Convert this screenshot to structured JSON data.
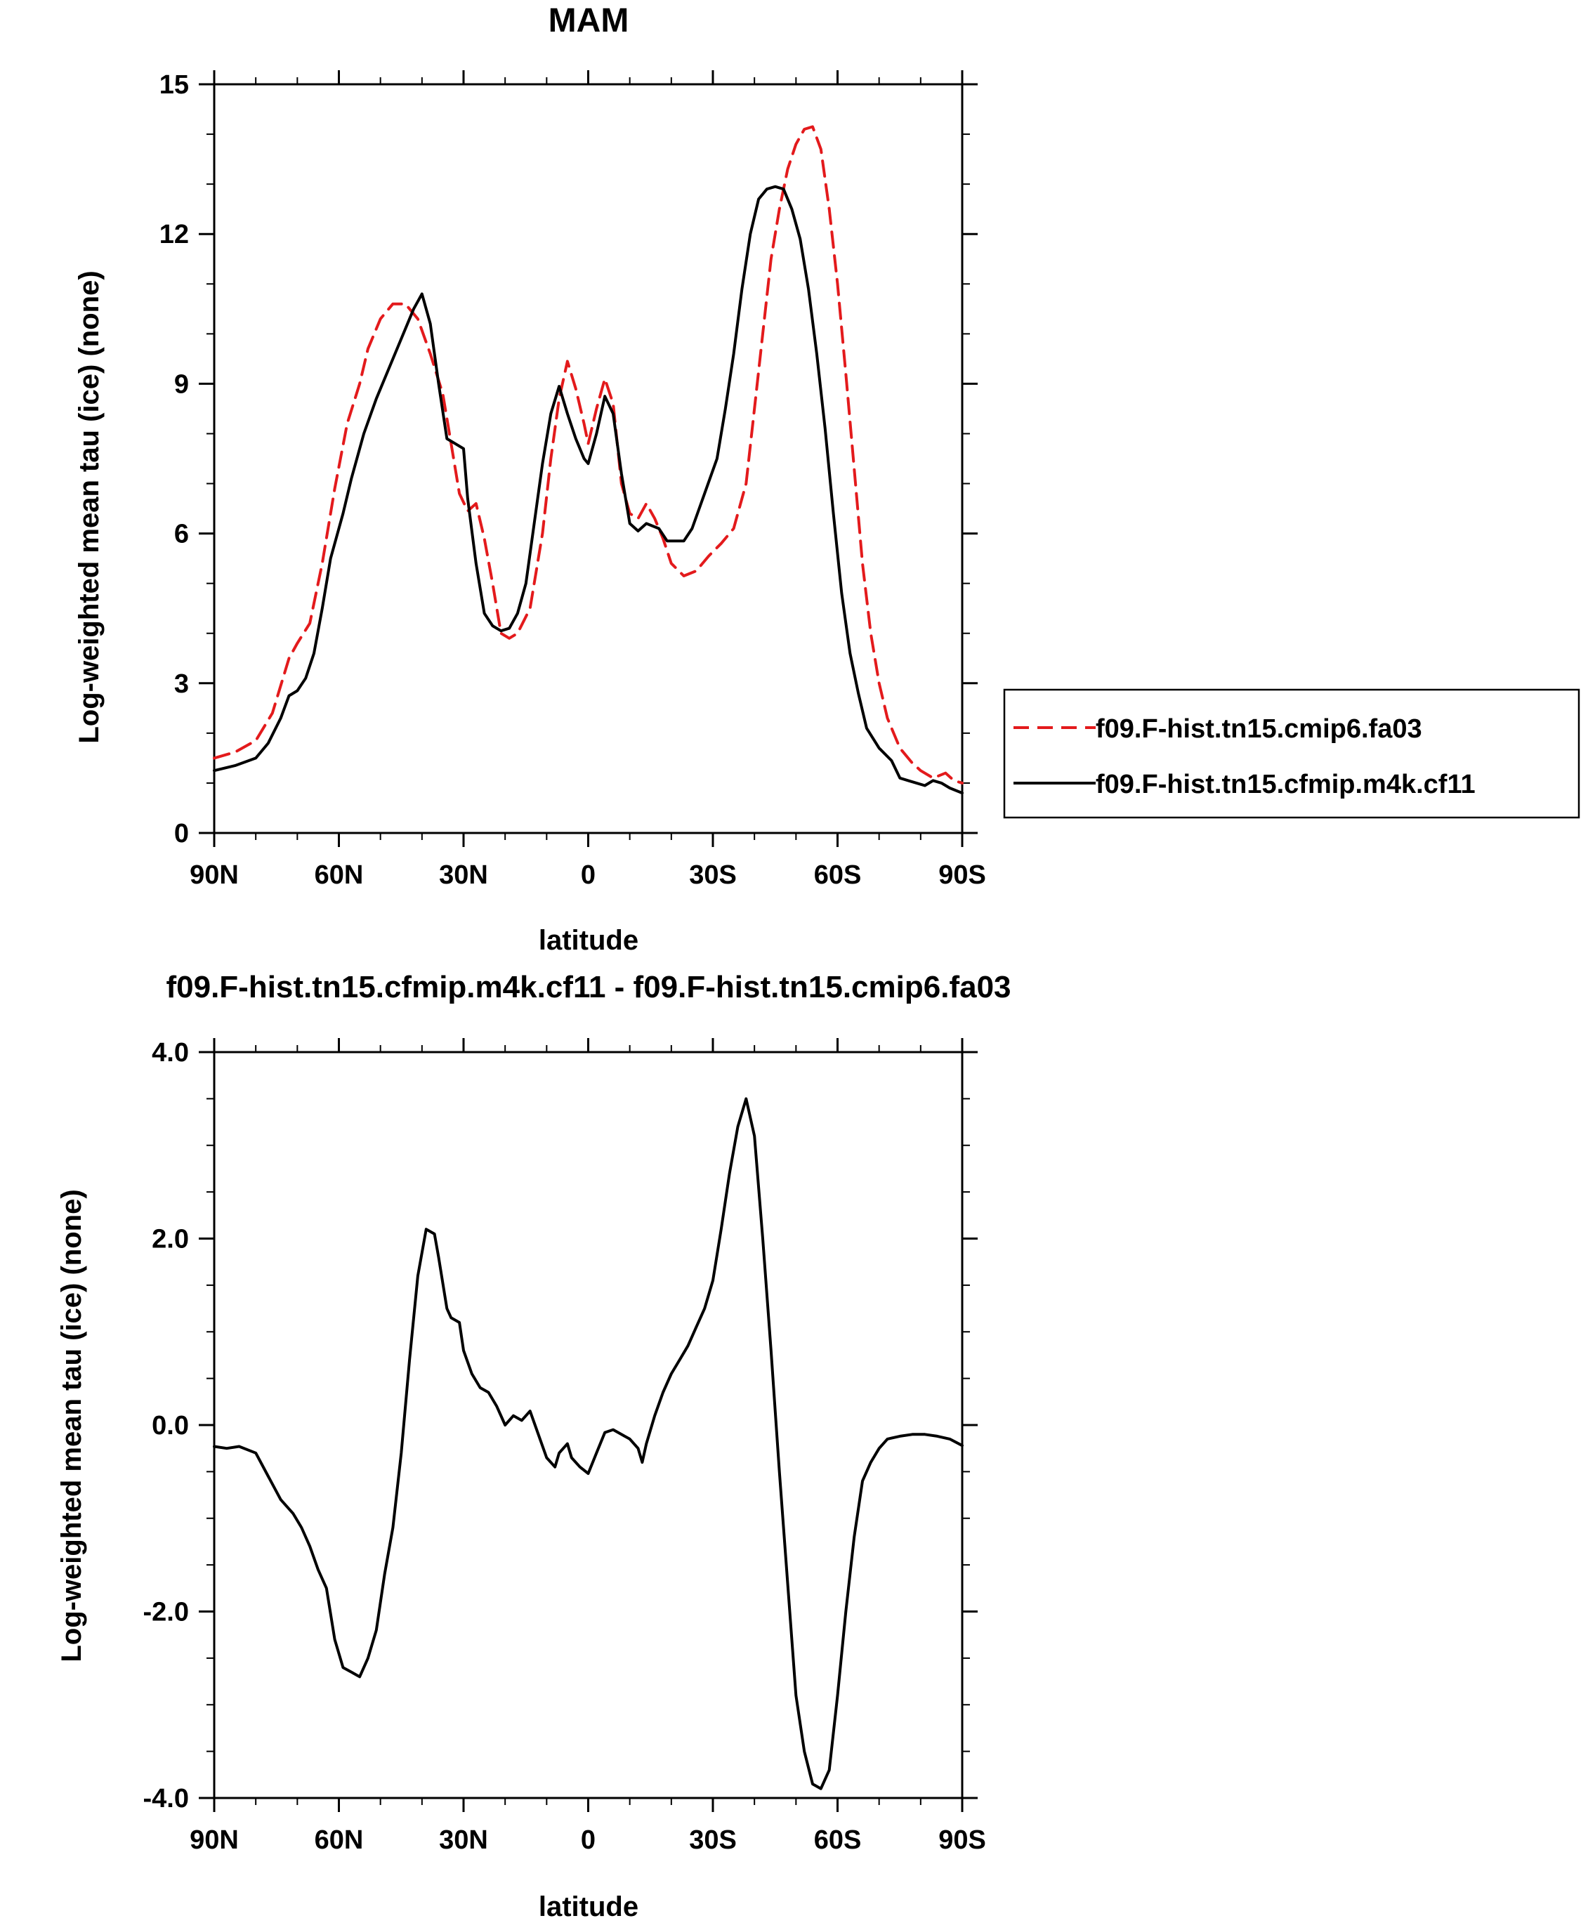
{
  "chart_data": [
    {
      "type": "line",
      "title": "MAM",
      "xlabel": "latitude",
      "ylabel": "Log-weighted mean tau (ice) (none)",
      "xlim": [
        90,
        -90
      ],
      "ylim": [
        0,
        15
      ],
      "xticks": [
        90,
        60,
        30,
        0,
        -30,
        -60,
        -90
      ],
      "xticklabels": [
        "90N",
        "60N",
        "30N",
        "0",
        "30S",
        "60S",
        "90S"
      ],
      "yticks": [
        0,
        3,
        6,
        9,
        12,
        15
      ],
      "yticklabels": [
        "0",
        "3",
        "6",
        "9",
        "12",
        "15"
      ],
      "legend_position": "right",
      "series": [
        {
          "name": "f09.F-hist.tn15.cmip6.fa03",
          "color": "#e31a1c",
          "dashed": true,
          "points": [
            [
              90,
              1.5
            ],
            [
              85,
              1.62
            ],
            [
              80,
              1.85
            ],
            [
              76,
              2.4
            ],
            [
              72,
              3.5
            ],
            [
              70,
              3.8
            ],
            [
              67,
              4.2
            ],
            [
              64,
              5.4
            ],
            [
              61,
              6.9
            ],
            [
              58,
              8.2
            ],
            [
              55,
              9.0
            ],
            [
              53,
              9.7
            ],
            [
              50,
              10.3
            ],
            [
              47,
              10.6
            ],
            [
              44,
              10.6
            ],
            [
              41,
              10.3
            ],
            [
              38,
              9.6
            ],
            [
              35,
              8.8
            ],
            [
              33,
              7.8
            ],
            [
              31,
              6.8
            ],
            [
              29,
              6.45
            ],
            [
              27,
              6.6
            ],
            [
              25,
              5.9
            ],
            [
              23,
              5.0
            ],
            [
              21,
              4.0
            ],
            [
              19,
              3.9
            ],
            [
              17,
              4.0
            ],
            [
              14,
              4.5
            ],
            [
              11,
              6.0
            ],
            [
              9,
              7.5
            ],
            [
              7,
              8.7
            ],
            [
              5,
              9.45
            ],
            [
              3,
              8.9
            ],
            [
              1,
              8.2
            ],
            [
              0,
              7.8
            ],
            [
              -2,
              8.5
            ],
            [
              -4,
              9.1
            ],
            [
              -6,
              8.6
            ],
            [
              -8,
              7.0
            ],
            [
              -10,
              6.4
            ],
            [
              -12,
              6.3
            ],
            [
              -14,
              6.6
            ],
            [
              -16,
              6.3
            ],
            [
              -18,
              5.9
            ],
            [
              -20,
              5.4
            ],
            [
              -23,
              5.15
            ],
            [
              -26,
              5.25
            ],
            [
              -29,
              5.55
            ],
            [
              -32,
              5.8
            ],
            [
              -35,
              6.1
            ],
            [
              -38,
              7.0
            ],
            [
              -40,
              8.5
            ],
            [
              -42,
              10.0
            ],
            [
              -44,
              11.5
            ],
            [
              -46,
              12.5
            ],
            [
              -48,
              13.3
            ],
            [
              -50,
              13.8
            ],
            [
              -52,
              14.1
            ],
            [
              -54,
              14.15
            ],
            [
              -56,
              13.7
            ],
            [
              -58,
              12.5
            ],
            [
              -60,
              11.0
            ],
            [
              -62,
              9.2
            ],
            [
              -64,
              7.3
            ],
            [
              -66,
              5.4
            ],
            [
              -68,
              4.0
            ],
            [
              -70,
              3.0
            ],
            [
              -72,
              2.3
            ],
            [
              -75,
              1.7
            ],
            [
              -78,
              1.4
            ],
            [
              -80,
              1.25
            ],
            [
              -83,
              1.1
            ],
            [
              -86,
              1.2
            ],
            [
              -88,
              1.05
            ],
            [
              -90,
              1.0
            ]
          ]
        },
        {
          "name": "f09.F-hist.tn15.cfmip.m4k.cf11",
          "color": "#000000",
          "dashed": false,
          "points": [
            [
              90,
              1.25
            ],
            [
              85,
              1.35
            ],
            [
              80,
              1.5
            ],
            [
              77,
              1.8
            ],
            [
              74,
              2.3
            ],
            [
              72,
              2.75
            ],
            [
              70,
              2.85
            ],
            [
              68,
              3.1
            ],
            [
              66,
              3.6
            ],
            [
              64,
              4.5
            ],
            [
              62,
              5.5
            ],
            [
              59,
              6.4
            ],
            [
              57,
              7.1
            ],
            [
              54,
              8.0
            ],
            [
              51,
              8.7
            ],
            [
              48,
              9.3
            ],
            [
              45,
              9.9
            ],
            [
              42,
              10.5
            ],
            [
              40,
              10.8
            ],
            [
              38,
              10.2
            ],
            [
              36,
              9.0
            ],
            [
              34,
              7.9
            ],
            [
              32,
              7.8
            ],
            [
              30,
              7.7
            ],
            [
              29,
              6.7
            ],
            [
              27,
              5.4
            ],
            [
              25,
              4.4
            ],
            [
              23,
              4.15
            ],
            [
              21,
              4.05
            ],
            [
              19,
              4.1
            ],
            [
              17,
              4.4
            ],
            [
              15,
              5.0
            ],
            [
              13,
              6.2
            ],
            [
              11,
              7.4
            ],
            [
              9,
              8.4
            ],
            [
              7,
              8.95
            ],
            [
              5,
              8.4
            ],
            [
              3,
              7.9
            ],
            [
              1,
              7.5
            ],
            [
              0,
              7.4
            ],
            [
              -2,
              8.0
            ],
            [
              -4,
              8.75
            ],
            [
              -6,
              8.4
            ],
            [
              -8,
              7.2
            ],
            [
              -10,
              6.2
            ],
            [
              -12,
              6.05
            ],
            [
              -14,
              6.2
            ],
            [
              -17,
              6.1
            ],
            [
              -19,
              5.85
            ],
            [
              -21,
              5.85
            ],
            [
              -23,
              5.85
            ],
            [
              -25,
              6.1
            ],
            [
              -28,
              6.8
            ],
            [
              -31,
              7.5
            ],
            [
              -33,
              8.5
            ],
            [
              -35,
              9.6
            ],
            [
              -37,
              10.9
            ],
            [
              -39,
              12.0
            ],
            [
              -41,
              12.7
            ],
            [
              -43,
              12.9
            ],
            [
              -45,
              12.95
            ],
            [
              -47,
              12.9
            ],
            [
              -49,
              12.5
            ],
            [
              -51,
              11.9
            ],
            [
              -53,
              10.9
            ],
            [
              -55,
              9.6
            ],
            [
              -57,
              8.1
            ],
            [
              -59,
              6.4
            ],
            [
              -61,
              4.8
            ],
            [
              -63,
              3.6
            ],
            [
              -65,
              2.8
            ],
            [
              -67,
              2.1
            ],
            [
              -70,
              1.7
            ],
            [
              -73,
              1.45
            ],
            [
              -75,
              1.1
            ],
            [
              -77,
              1.05
            ],
            [
              -79,
              1.0
            ],
            [
              -81,
              0.95
            ],
            [
              -83,
              1.05
            ],
            [
              -85,
              1.0
            ],
            [
              -87,
              0.9
            ],
            [
              -90,
              0.8
            ]
          ]
        }
      ]
    },
    {
      "type": "line",
      "title": "f09.F-hist.tn15.cfmip.m4k.cf11 - f09.F-hist.tn15.cmip6.fa03",
      "xlabel": "latitude",
      "ylabel": "Log-weighted mean tau (ice) (none)",
      "xlim": [
        90,
        -90
      ],
      "ylim": [
        -4,
        4
      ],
      "xticks": [
        90,
        60,
        30,
        0,
        -30,
        -60,
        -90
      ],
      "xticklabels": [
        "90N",
        "60N",
        "30N",
        "0",
        "30S",
        "60S",
        "90S"
      ],
      "yticks": [
        -4,
        -2,
        0,
        2,
        4
      ],
      "yticklabels": [
        "-4.0",
        "-2.0",
        "0.0",
        "2.0",
        "4.0"
      ],
      "series": [
        {
          "color": "#000000",
          "dashed": false,
          "points": [
            [
              90,
              -0.23
            ],
            [
              87,
              -0.25
            ],
            [
              84,
              -0.23
            ],
            [
              80,
              -0.3
            ],
            [
              77,
              -0.55
            ],
            [
              74,
              -0.8
            ],
            [
              71,
              -0.95
            ],
            [
              69,
              -1.1
            ],
            [
              67,
              -1.3
            ],
            [
              65,
              -1.55
            ],
            [
              63,
              -1.75
            ],
            [
              61,
              -2.3
            ],
            [
              59,
              -2.6
            ],
            [
              57,
              -2.65
            ],
            [
              55,
              -2.7
            ],
            [
              53,
              -2.5
            ],
            [
              51,
              -2.2
            ],
            [
              49,
              -1.6
            ],
            [
              47,
              -1.1
            ],
            [
              45,
              -0.3
            ],
            [
              43,
              0.7
            ],
            [
              41,
              1.6
            ],
            [
              39,
              2.1
            ],
            [
              37,
              2.05
            ],
            [
              36,
              1.8
            ],
            [
              34,
              1.25
            ],
            [
              33,
              1.15
            ],
            [
              31,
              1.1
            ],
            [
              30,
              0.8
            ],
            [
              28,
              0.55
            ],
            [
              26,
              0.4
            ],
            [
              24,
              0.35
            ],
            [
              22,
              0.2
            ],
            [
              20,
              0.0
            ],
            [
              18,
              0.1
            ],
            [
              16,
              0.05
            ],
            [
              14,
              0.15
            ],
            [
              12,
              -0.1
            ],
            [
              10,
              -0.35
            ],
            [
              8,
              -0.45
            ],
            [
              7,
              -0.3
            ],
            [
              5,
              -0.2
            ],
            [
              4,
              -0.35
            ],
            [
              2,
              -0.45
            ],
            [
              0,
              -0.52
            ],
            [
              -2,
              -0.3
            ],
            [
              -4,
              -0.08
            ],
            [
              -6,
              -0.05
            ],
            [
              -8,
              -0.1
            ],
            [
              -10,
              -0.15
            ],
            [
              -12,
              -0.25
            ],
            [
              -13,
              -0.4
            ],
            [
              -14,
              -0.2
            ],
            [
              -16,
              0.1
            ],
            [
              -18,
              0.35
            ],
            [
              -20,
              0.55
            ],
            [
              -22,
              0.7
            ],
            [
              -24,
              0.85
            ],
            [
              -26,
              1.05
            ],
            [
              -28,
              1.25
            ],
            [
              -30,
              1.55
            ],
            [
              -32,
              2.1
            ],
            [
              -34,
              2.7
            ],
            [
              -36,
              3.2
            ],
            [
              -38,
              3.5
            ],
            [
              -40,
              3.1
            ],
            [
              -42,
              2.0
            ],
            [
              -44,
              0.8
            ],
            [
              -46,
              -0.5
            ],
            [
              -48,
              -1.7
            ],
            [
              -50,
              -2.9
            ],
            [
              -52,
              -3.5
            ],
            [
              -54,
              -3.85
            ],
            [
              -56,
              -3.9
            ],
            [
              -58,
              -3.7
            ],
            [
              -60,
              -2.9
            ],
            [
              -62,
              -2.0
            ],
            [
              -64,
              -1.2
            ],
            [
              -66,
              -0.6
            ],
            [
              -68,
              -0.4
            ],
            [
              -70,
              -0.25
            ],
            [
              -72,
              -0.15
            ],
            [
              -75,
              -0.12
            ],
            [
              -78,
              -0.1
            ],
            [
              -81,
              -0.1
            ],
            [
              -84,
              -0.12
            ],
            [
              -87,
              -0.15
            ],
            [
              -90,
              -0.22
            ]
          ]
        }
      ]
    }
  ]
}
